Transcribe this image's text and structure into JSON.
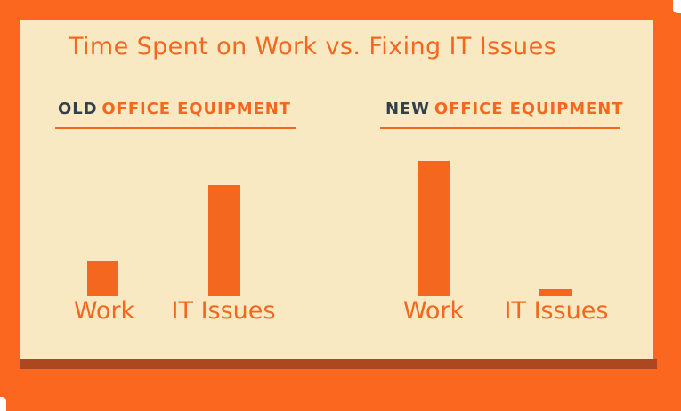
{
  "palette": {
    "background_orange": "#FB671E",
    "card_cream": "#F8E9C3",
    "accent_orange": "#F4671E",
    "bar_orange": "#F4671E",
    "shadow_rust": "#AD4722",
    "dark_navy": "#333F4C",
    "page_white": "#FFFFFF"
  },
  "title": "Time Spent on Work vs. Fixing IT Issues",
  "sections": [
    {
      "prefix": "OLD",
      "rest": "OFFICE EQUIPMENT"
    },
    {
      "prefix": "NEW",
      "rest": "OFFICE EQUIPMENT"
    }
  ],
  "chart_data": [
    {
      "type": "bar",
      "title": "OLD OFFICE EQUIPMENT",
      "categories": [
        "Work",
        "IT Issues"
      ],
      "values": [
        40,
        125
      ],
      "values_pct_of_max": [
        26,
        82
      ],
      "units": "relative bar height in px (no numeric axis shown in graphic)",
      "bar_color": "#F4671E",
      "label_color": "#F4671E",
      "grid": false,
      "legend": false
    },
    {
      "type": "bar",
      "title": "NEW OFFICE EQUIPMENT",
      "categories": [
        "Work",
        "IT Issues"
      ],
      "values": [
        152,
        8
      ],
      "values_pct_of_max": [
        100,
        5
      ],
      "units": "relative bar height in px (no numeric axis shown in graphic)",
      "bar_color": "#F4671E",
      "label_color": "#F4671E",
      "grid": false,
      "legend": false
    }
  ]
}
